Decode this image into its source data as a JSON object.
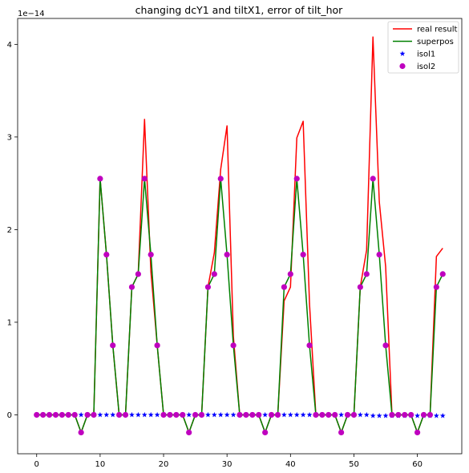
{
  "chart_data": {
    "type": "line",
    "title": "changing dcY1 and tiltX1, error of tilt_hor",
    "xlabel": "",
    "ylabel": "",
    "y_offset_label": "1e−14",
    "xlim": [
      -3,
      67
    ],
    "ylim": [
      -0.42,
      4.28
    ],
    "x_ticks": [
      0,
      10,
      20,
      30,
      40,
      50,
      60
    ],
    "x_tick_labels": [
      "0",
      "10",
      "20",
      "30",
      "40",
      "50",
      "60"
    ],
    "y_ticks": [
      0,
      1,
      2,
      3,
      4
    ],
    "y_tick_labels": [
      "0",
      "1",
      "2",
      "3",
      "4"
    ],
    "grid": false,
    "legend_position": "top-right",
    "x": [
      0,
      1,
      2,
      3,
      4,
      5,
      6,
      7,
      8,
      9,
      10,
      11,
      12,
      13,
      14,
      15,
      16,
      17,
      18,
      19,
      20,
      21,
      22,
      23,
      24,
      25,
      26,
      27,
      28,
      29,
      30,
      31,
      32,
      33,
      34,
      35,
      36,
      37,
      38,
      39,
      40,
      41,
      42,
      43,
      44,
      45,
      46,
      47,
      48,
      49,
      50,
      51,
      52,
      53,
      54,
      55,
      56,
      57,
      58,
      59,
      60,
      61,
      62,
      63,
      64
    ],
    "series": [
      {
        "name": "real result",
        "kind": "line",
        "color": "#ff0000",
        "values": [
          0,
          0,
          0,
          0,
          0,
          0,
          0,
          -0.19,
          0,
          0,
          2.55,
          1.73,
          0.75,
          0,
          0,
          1.38,
          1.52,
          3.19,
          1.55,
          0.75,
          0,
          0,
          0,
          0,
          -0.19,
          0,
          0,
          1.38,
          1.75,
          2.65,
          3.12,
          0.85,
          0,
          0,
          0,
          0,
          -0.19,
          0,
          0,
          1.23,
          1.38,
          2.99,
          3.17,
          1.2,
          0,
          0,
          0,
          0,
          -0.19,
          0,
          0,
          1.38,
          1.78,
          4.08,
          2.3,
          1.6,
          0,
          0,
          0,
          0,
          -0.19,
          0,
          0,
          1.71,
          1.8
        ]
      },
      {
        "name": "superpos",
        "kind": "line",
        "color": "#008000",
        "values": [
          0,
          0,
          0,
          0,
          0,
          0,
          0,
          -0.19,
          0,
          0,
          2.55,
          1.73,
          0.75,
          0,
          0,
          1.38,
          1.52,
          2.55,
          1.73,
          0.75,
          0,
          0,
          0,
          0,
          -0.19,
          0,
          0,
          1.38,
          1.52,
          2.55,
          1.73,
          0.75,
          0,
          0,
          0,
          0,
          -0.19,
          0,
          0,
          1.38,
          1.52,
          2.55,
          1.73,
          0.75,
          0,
          0,
          0,
          0,
          -0.19,
          0,
          0,
          1.38,
          1.52,
          2.55,
          1.73,
          0.75,
          0,
          0,
          0,
          0,
          -0.19,
          0,
          0,
          1.38,
          1.52
        ]
      },
      {
        "name": "isol1",
        "kind": "star",
        "color": "#0000ff",
        "values": [
          0,
          0,
          0,
          0,
          0,
          0,
          0,
          0,
          0,
          0,
          0,
          0,
          0,
          0,
          0,
          0,
          0,
          0,
          0,
          0,
          0,
          0,
          0,
          0,
          0,
          0,
          0,
          0,
          0,
          0,
          0,
          0,
          0,
          0,
          0,
          0,
          0,
          0,
          0,
          0,
          0,
          0,
          0,
          0,
          0,
          0,
          0,
          0,
          0,
          0,
          0,
          0,
          0,
          -0.01,
          -0.01,
          -0.01,
          -0.01,
          -0.01,
          -0.01,
          -0.01,
          -0.01,
          -0.01,
          -0.01,
          -0.01,
          -0.01
        ]
      },
      {
        "name": "isol2",
        "kind": "circle",
        "color": "#bf00bf",
        "values": [
          0,
          0,
          0,
          0,
          0,
          0,
          0,
          -0.19,
          0,
          0,
          2.55,
          1.73,
          0.75,
          0,
          0,
          1.38,
          1.52,
          2.55,
          1.73,
          0.75,
          0,
          0,
          0,
          0,
          -0.19,
          0,
          0,
          1.38,
          1.52,
          2.55,
          1.73,
          0.75,
          0,
          0,
          0,
          0,
          -0.19,
          0,
          0,
          1.38,
          1.52,
          2.55,
          1.73,
          0.75,
          0,
          0,
          0,
          0,
          -0.19,
          0,
          0,
          1.38,
          1.52,
          2.55,
          1.73,
          0.75,
          0,
          0,
          0,
          0,
          -0.19,
          0,
          0,
          1.38,
          1.52
        ]
      }
    ]
  }
}
